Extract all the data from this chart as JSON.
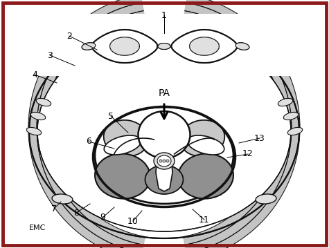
{
  "border_color": "#8B1A1A",
  "bg_color": "#FFFFFF",
  "gray_fill": "#C8C8C8",
  "dark_gray_fill": "#909090",
  "light_gray_fill": "#E0E0E0",
  "line_color": "#111111",
  "arc_gray": "#BEBEBE",
  "white": "#FFFFFF"
}
